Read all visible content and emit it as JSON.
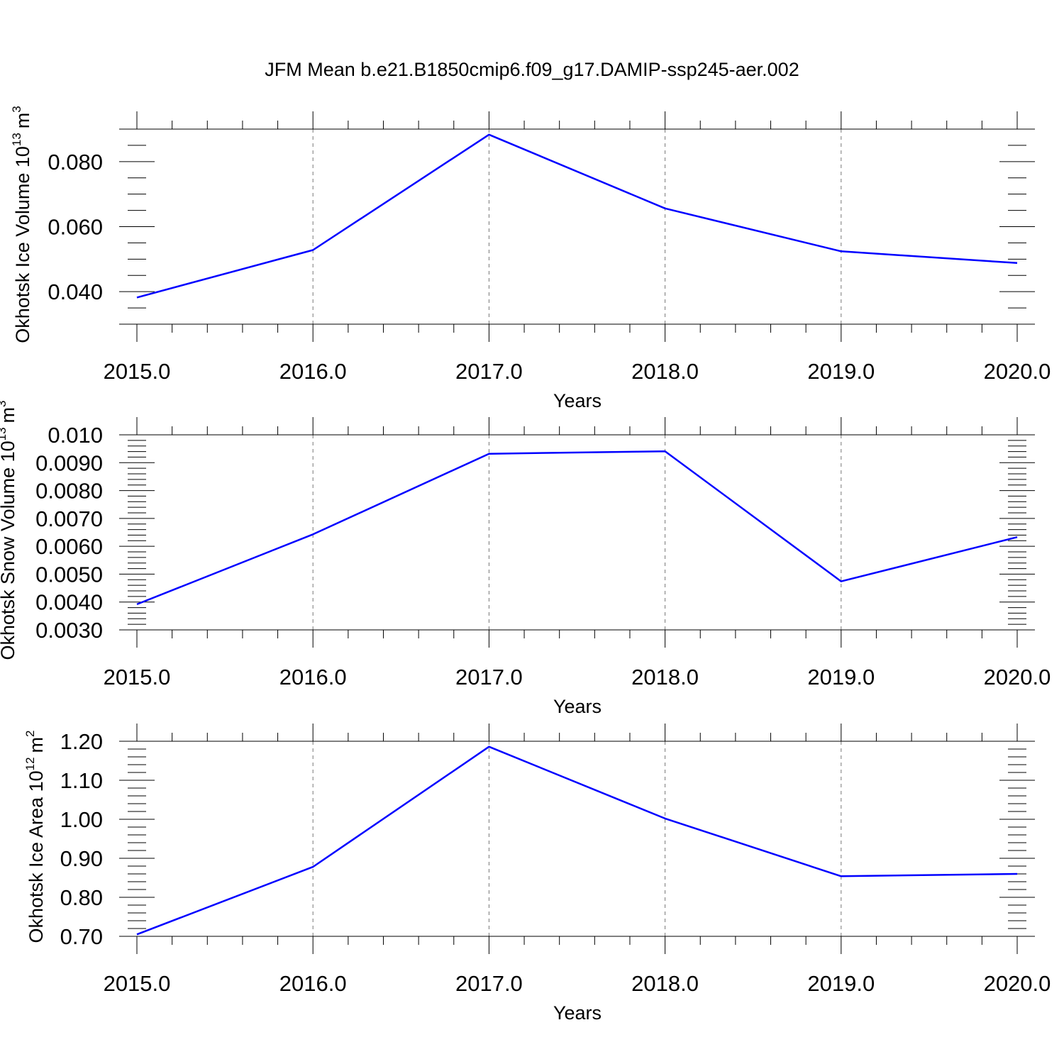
{
  "title": "JFM Mean b.e21.B1850cmip6.f09_g17.DAMIP-ssp245-aer.002",
  "line_color": "#0000ff",
  "chart_data": [
    {
      "type": "line",
      "title": "",
      "xlabel": "Years",
      "ylabel_text": "Okhotsk Ice Volume 10",
      "ylabel_exp": "13",
      "ylabel_unit": "m",
      "ylabel_unit_exp": "3",
      "x": [
        2015,
        2016,
        2017,
        2018,
        2019,
        2020
      ],
      "xlim": [
        2015,
        2020
      ],
      "xticks": [
        2015,
        2016,
        2017,
        2018,
        2019,
        2020
      ],
      "xtick_labels": [
        "2015.0",
        "2016.0",
        "2017.0",
        "2018.0",
        "2019.0",
        "2020.0"
      ],
      "ylim": [
        0.03,
        0.09
      ],
      "yticks": [
        0.04,
        0.06,
        0.08
      ],
      "ytick_labels": [
        "0.040",
        "0.060",
        "0.080"
      ],
      "yminor": [
        0.03,
        0.035,
        0.045,
        0.05,
        0.055,
        0.065,
        0.07,
        0.075,
        0.085,
        0.09
      ],
      "grid": "vertical dashed",
      "series": [
        {
          "values": [
            0.0382,
            0.0528,
            0.0883,
            0.0656,
            0.0524,
            0.0488
          ]
        }
      ]
    },
    {
      "type": "line",
      "title": "",
      "xlabel": "Years",
      "ylabel_text": "Okhotsk Snow Volume 10",
      "ylabel_exp": "13",
      "ylabel_unit": "m",
      "ylabel_unit_exp": "3",
      "x": [
        2015,
        2016,
        2017,
        2018,
        2019,
        2020
      ],
      "xlim": [
        2015,
        2020
      ],
      "xticks": [
        2015,
        2016,
        2017,
        2018,
        2019,
        2020
      ],
      "xtick_labels": [
        "2015.0",
        "2016.0",
        "2017.0",
        "2018.0",
        "2019.0",
        "2020.0"
      ],
      "ylim": [
        0.003,
        0.01
      ],
      "yticks": [
        0.003,
        0.004,
        0.005,
        0.006,
        0.007,
        0.008,
        0.009,
        0.01
      ],
      "ytick_labels": [
        "0.0030",
        "0.0040",
        "0.0050",
        "0.0060",
        "0.0070",
        "0.0080",
        "0.0090",
        "0.010"
      ],
      "yminor": [
        0.0032,
        0.0034,
        0.0036,
        0.0038,
        0.0042,
        0.0044,
        0.0046,
        0.0048,
        0.0052,
        0.0054,
        0.0056,
        0.0058,
        0.0062,
        0.0064,
        0.0066,
        0.0068,
        0.0072,
        0.0074,
        0.0076,
        0.0078,
        0.0082,
        0.0084,
        0.0086,
        0.0088,
        0.0092,
        0.0094,
        0.0096,
        0.0098
      ],
      "grid": "vertical dashed",
      "series": [
        {
          "values": [
            0.00392,
            0.00643,
            0.00932,
            0.00941,
            0.00474,
            0.00633
          ]
        }
      ]
    },
    {
      "type": "line",
      "title": "",
      "xlabel": "Years",
      "ylabel_text": "Okhotsk Ice Area 10",
      "ylabel_exp": "12",
      "ylabel_unit": "m",
      "ylabel_unit_exp": "2",
      "x": [
        2015,
        2016,
        2017,
        2018,
        2019,
        2020
      ],
      "xlim": [
        2015,
        2020
      ],
      "xticks": [
        2015,
        2016,
        2017,
        2018,
        2019,
        2020
      ],
      "xtick_labels": [
        "2015.0",
        "2016.0",
        "2017.0",
        "2018.0",
        "2019.0",
        "2020.0"
      ],
      "ylim": [
        0.7,
        1.2
      ],
      "yticks": [
        0.7,
        0.8,
        0.9,
        1.0,
        1.1,
        1.2
      ],
      "ytick_labels": [
        "0.70",
        "0.80",
        "0.90",
        "1.00",
        "1.10",
        "1.20"
      ],
      "yminor": [
        0.72,
        0.74,
        0.76,
        0.78,
        0.82,
        0.84,
        0.86,
        0.88,
        0.92,
        0.94,
        0.96,
        0.98,
        1.02,
        1.04,
        1.06,
        1.08,
        1.12,
        1.14,
        1.16,
        1.18
      ],
      "grid": "vertical dashed",
      "series": [
        {
          "values": [
            0.705,
            0.878,
            1.186,
            1.002,
            0.854,
            0.86
          ]
        }
      ]
    }
  ]
}
